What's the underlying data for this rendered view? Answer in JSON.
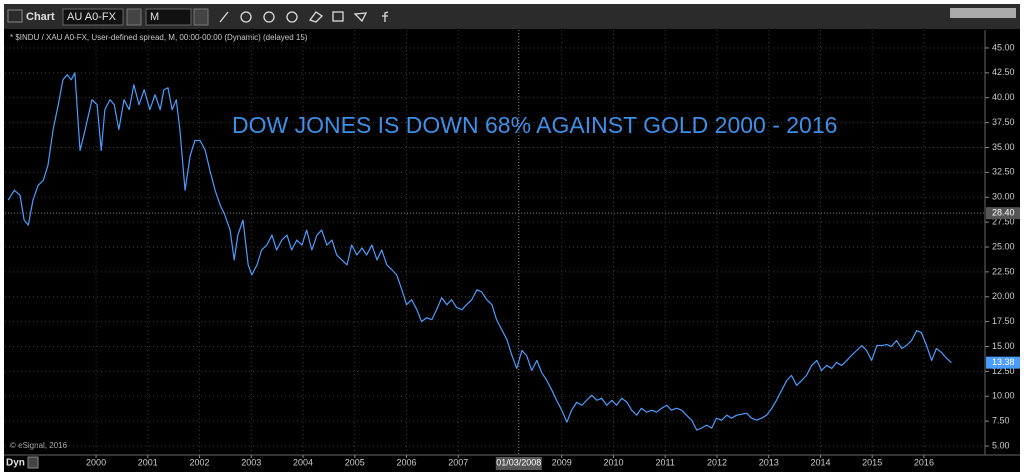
{
  "toolbar": {
    "title": "Chart",
    "symbol": "AU A0-FX",
    "interval": "M"
  },
  "chart_data": {
    "type": "line",
    "subtitle": "* $INDU / XAU A0-FX, User-defined spread, M, 00:00-00:00 (Dynamic) (delayed 15)",
    "annotation": "DOW JONES IS DOWN 68% AGAINST GOLD  2000 - 2016",
    "copyright": "© eSignal, 2016",
    "corner_label": "Dyn",
    "color": "#4a9cff",
    "grid": true,
    "xlim": [
      1998.24,
      2017.18
    ],
    "ylim": [
      4.1,
      46
    ],
    "xticks": [
      2000,
      2001,
      2002,
      2003,
      2004,
      2005,
      2006,
      2007,
      2009,
      2010,
      2011,
      2012,
      2013,
      2014,
      2015,
      2016
    ],
    "yticks": [
      {
        "value": 5,
        "label": "5.00"
      },
      {
        "value": 7.5,
        "label": "7.50"
      },
      {
        "value": 10,
        "label": "10.00"
      },
      {
        "value": 12.5,
        "label": "12.50"
      },
      {
        "value": 15,
        "label": "15.00"
      },
      {
        "value": 17.5,
        "label": "17.50"
      },
      {
        "value": 20,
        "label": "20.00"
      },
      {
        "value": 22.5,
        "label": "22.50"
      },
      {
        "value": 25,
        "label": "25.00"
      },
      {
        "value": 27.5,
        "label": "27.50"
      },
      {
        "value": 30,
        "label": "30.00"
      },
      {
        "value": 32.5,
        "label": "32.50"
      },
      {
        "value": 35,
        "label": "35.00"
      },
      {
        "value": 37.5,
        "label": "37.50"
      },
      {
        "value": 40,
        "label": "40.00"
      },
      {
        "value": 42.5,
        "label": "42.50"
      },
      {
        "value": 45,
        "label": "45.00"
      }
    ],
    "crosshair": {
      "x": 2008.17,
      "x_label": "01/03/2008",
      "y": 28.4,
      "y_label": "28.40"
    },
    "x": [
      1998.3,
      1998.42,
      1998.53,
      1998.61,
      1998.69,
      1998.78,
      1998.88,
      1998.98,
      1999.07,
      1999.17,
      1999.27,
      1999.36,
      1999.44,
      1999.52,
      1999.59,
      1999.69,
      1999.79,
      1999.92,
      2000.02,
      2000.1,
      2000.17,
      2000.27,
      2000.35,
      2000.44,
      2000.54,
      2000.64,
      2000.73,
      2000.83,
      2000.93,
      2001.04,
      2001.14,
      2001.24,
      2001.31,
      2001.39,
      2001.47,
      2001.55,
      2001.62,
      2001.72,
      2001.82,
      2001.91,
      2002.01,
      2002.11,
      2002.2,
      2002.3,
      2002.4,
      2002.49,
      2002.59,
      2002.67,
      2002.74,
      2002.84,
      2002.94,
      2003.01,
      2003.11,
      2003.2,
      2003.3,
      2003.4,
      2003.49,
      2003.59,
      2003.69,
      2003.78,
      2003.88,
      2003.98,
      2004.07,
      2004.17,
      2004.27,
      2004.36,
      2004.46,
      2004.56,
      2004.65,
      2004.75,
      2004.85,
      2004.94,
      2005.04,
      2005.14,
      2005.23,
      2005.33,
      2005.43,
      2005.52,
      2005.62,
      2005.72,
      2005.81,
      2005.91,
      2006.0,
      2006.1,
      2006.2,
      2006.29,
      2006.39,
      2006.49,
      2006.58,
      2006.68,
      2006.78,
      2006.87,
      2006.97,
      2007.07,
      2007.16,
      2007.26,
      2007.36,
      2007.45,
      2007.55,
      2007.65,
      2007.74,
      2007.84,
      2007.94,
      2008.03,
      2008.13,
      2008.23,
      2008.32,
      2008.42,
      2008.52,
      2008.61,
      2008.71,
      2008.81,
      2008.9,
      2009.0,
      2009.1,
      2009.19,
      2009.29,
      2009.39,
      2009.48,
      2009.58,
      2009.68,
      2009.77,
      2009.87,
      2009.97,
      2010.06,
      2010.16,
      2010.26,
      2010.35,
      2010.45,
      2010.54,
      2010.64,
      2010.74,
      2010.83,
      2010.93,
      2011.03,
      2011.12,
      2011.22,
      2011.32,
      2011.41,
      2011.51,
      2011.61,
      2011.7,
      2011.8,
      2011.9,
      2011.99,
      2012.09,
      2012.19,
      2012.28,
      2012.38,
      2012.48,
      2012.57,
      2012.67,
      2012.77,
      2012.86,
      2012.96,
      2013.06,
      2013.15,
      2013.25,
      2013.35,
      2013.44,
      2013.54,
      2013.64,
      2013.73,
      2013.83,
      2013.93,
      2014.02,
      2014.12,
      2014.22,
      2014.31,
      2014.41,
      2014.51,
      2014.6,
      2014.7,
      2014.8,
      2014.89,
      2014.99,
      2015.09,
      2015.18,
      2015.28,
      2015.37,
      2015.47,
      2015.57,
      2015.66,
      2015.76,
      2015.86,
      2015.95,
      2016.05,
      2016.15,
      2016.24,
      2016.34,
      2016.44,
      2016.53
    ],
    "values": [
      29.7,
      30.7,
      30.2,
      27.7,
      27.2,
      29.7,
      31.2,
      31.7,
      33.2,
      36.8,
      39.3,
      41.8,
      42.3,
      41.8,
      42.5,
      34.7,
      36.8,
      39.8,
      39.3,
      34.7,
      38.8,
      39.8,
      39.3,
      36.8,
      39.8,
      38.8,
      41.3,
      39.3,
      40.8,
      38.8,
      40.3,
      38.8,
      40.8,
      41.0,
      38.8,
      39.8,
      36.8,
      30.7,
      34.2,
      35.7,
      35.7,
      34.7,
      32.7,
      30.7,
      29.2,
      28.2,
      26.7,
      23.7,
      26.2,
      27.7,
      23.2,
      22.2,
      23.2,
      24.7,
      25.2,
      26.2,
      24.7,
      25.7,
      26.2,
      24.7,
      25.7,
      25.2,
      26.7,
      24.7,
      26.2,
      26.7,
      25.2,
      25.7,
      24.2,
      23.7,
      23.2,
      25.2,
      24.2,
      24.9,
      24.2,
      25.2,
      23.7,
      24.7,
      23.2,
      22.7,
      22.2,
      20.7,
      19.2,
      19.7,
      18.7,
      17.5,
      17.9,
      17.7,
      18.7,
      19.9,
      19.2,
      19.7,
      18.9,
      18.7,
      19.2,
      19.7,
      20.7,
      20.5,
      19.7,
      19.2,
      17.7,
      16.7,
      15.7,
      14.2,
      12.8,
      14.6,
      14.1,
      12.6,
      13.6,
      12.4,
      11.6,
      10.6,
      9.6,
      8.6,
      7.4,
      8.6,
      9.4,
      9.1,
      9.6,
      10.1,
      9.6,
      9.8,
      9.1,
      9.6,
      9.1,
      9.8,
      9.4,
      8.6,
      8.1,
      8.8,
      8.4,
      8.6,
      8.4,
      8.8,
      9.1,
      8.6,
      8.8,
      8.6,
      8.1,
      7.6,
      6.6,
      6.8,
      7.1,
      6.8,
      7.8,
      7.6,
      8.1,
      7.8,
      8.1,
      8.2,
      8.3,
      7.8,
      7.6,
      7.8,
      8.1,
      8.8,
      9.6,
      10.6,
      11.6,
      12.1,
      11.1,
      11.6,
      12.1,
      13.1,
      13.6,
      12.6,
      13.1,
      12.8,
      13.4,
      13.1,
      13.6,
      14.1,
      14.6,
      15.1,
      14.6,
      13.6,
      15.1,
      15.1,
      15.2,
      15.0,
      15.6,
      14.8,
      15.1,
      15.6,
      16.6,
      16.4,
      15.1,
      13.6,
      14.8,
      14.4,
      13.8,
      13.38
    ]
  }
}
